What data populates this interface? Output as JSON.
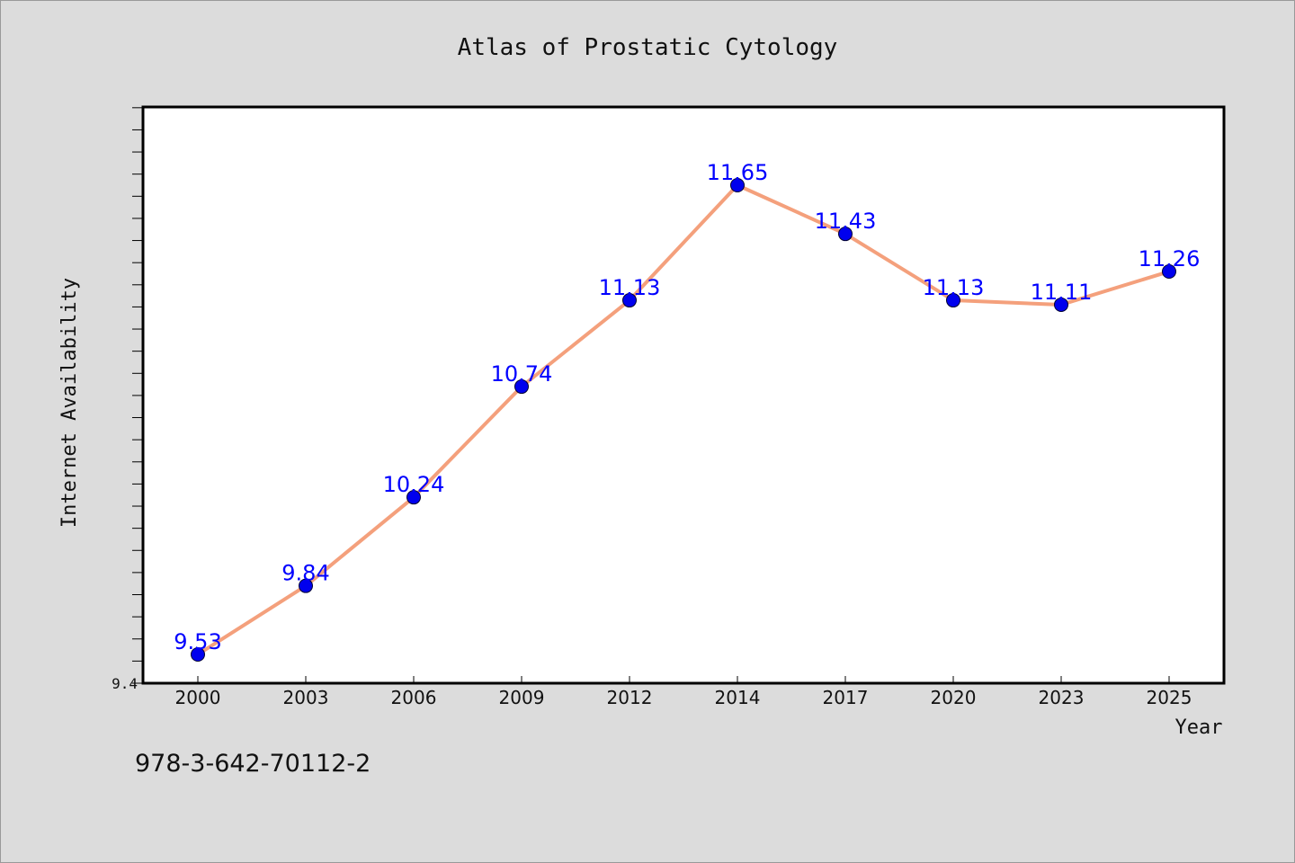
{
  "chart_data": {
    "type": "line",
    "title": "Atlas of Prostatic Cytology",
    "xlabel": "Year",
    "ylabel": "Internet Availability",
    "categories": [
      "2000",
      "2003",
      "2006",
      "2009",
      "2012",
      "2014",
      "2017",
      "2020",
      "2023",
      "2025"
    ],
    "series": [
      {
        "values": [
          9.53,
          9.84,
          10.24,
          10.74,
          11.13,
          11.65,
          11.43,
          11.13,
          11.11,
          11.26
        ],
        "data_labels": [
          "9.53",
          "9.84",
          "10.24",
          "10.74",
          "11.13",
          "11.65",
          "11.43",
          "11.13",
          "11.11",
          "11.26"
        ],
        "line_color": "#f4a07c",
        "marker_color": "#0000ee"
      }
    ],
    "ylim": [
      9.4,
      12.0
    ],
    "y_tick_labels": [
      "9.4"
    ],
    "grid": false,
    "legend": "none"
  },
  "footer": {
    "identifier": "978-3-642-70112-2"
  },
  "colors": {
    "background": "#dcdcdc",
    "plot_background": "#ffffff",
    "data_label": "#0000ff"
  }
}
